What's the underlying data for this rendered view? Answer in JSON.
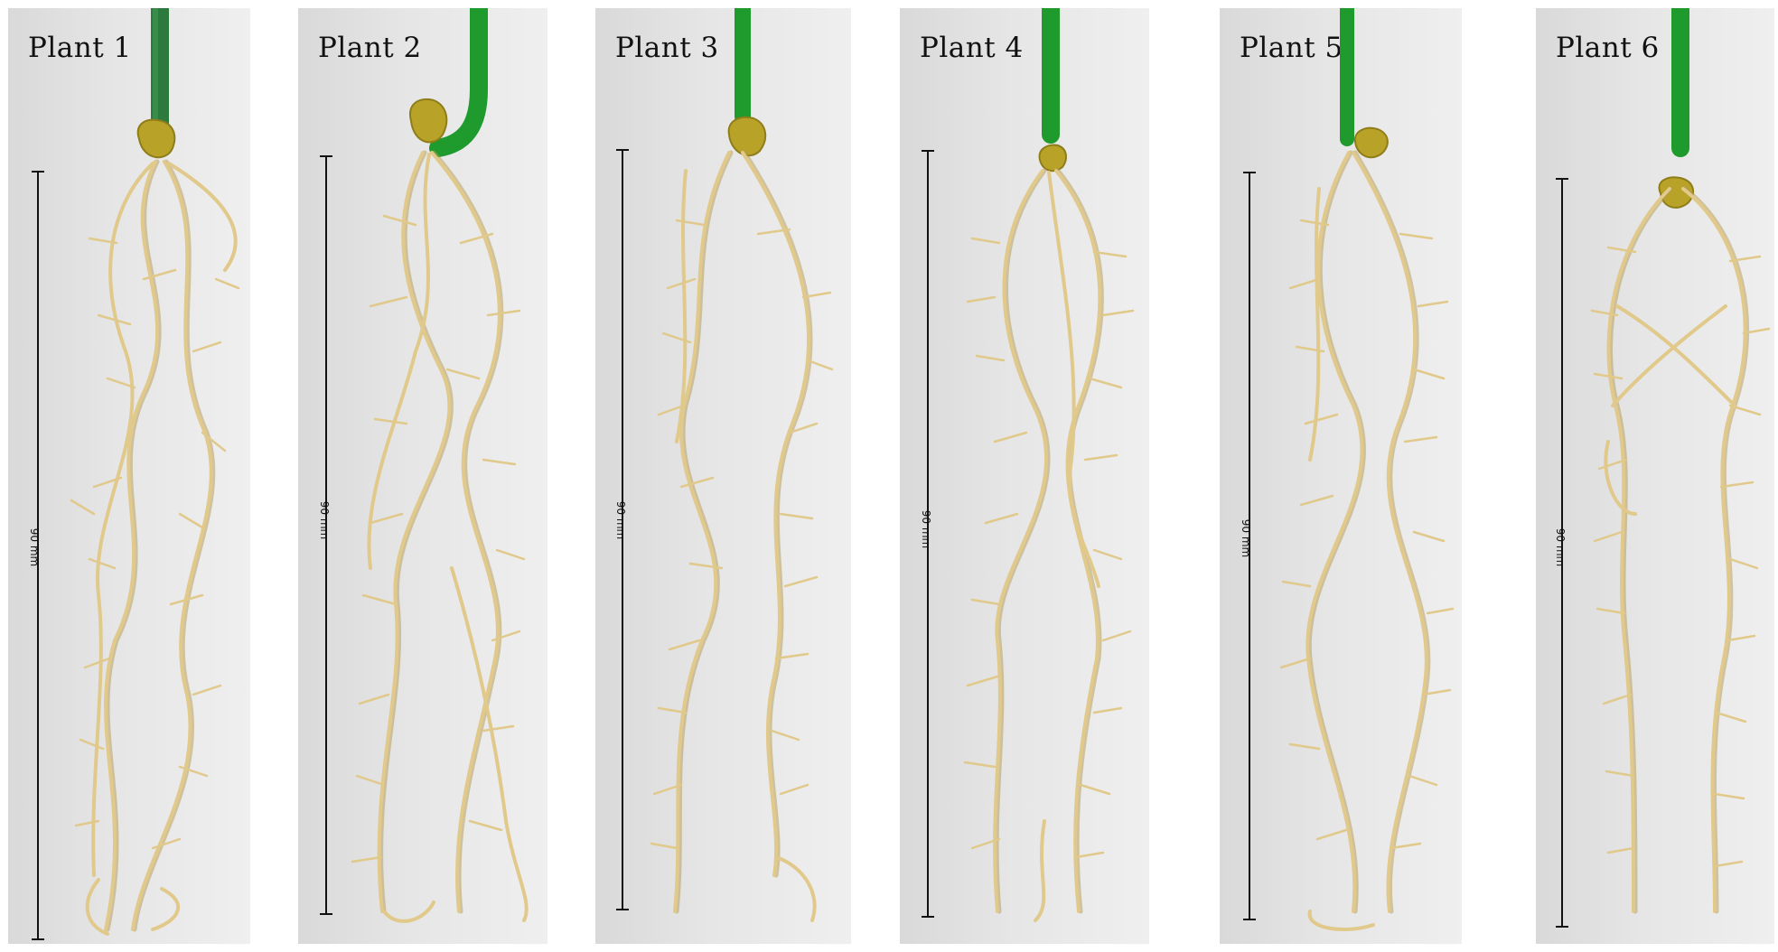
{
  "panels": [
    {
      "title": "Plant 1",
      "scale_label": "90 mm"
    },
    {
      "title": "Plant 2",
      "scale_label": "90 mm"
    },
    {
      "title": "Plant 3",
      "scale_label": "90 mm"
    },
    {
      "title": "Plant 4",
      "scale_label": "90 mm"
    },
    {
      "title": "Plant 5",
      "scale_label": "90 mm"
    },
    {
      "title": "Plant 6",
      "scale_label": "90 mm"
    }
  ],
  "colors": {
    "root": "#e0c98a",
    "root_shadow": "#b39a55",
    "stem": "#1f9a2c",
    "seed": "#b8a228",
    "panel_bg": "#e4e4e4"
  }
}
